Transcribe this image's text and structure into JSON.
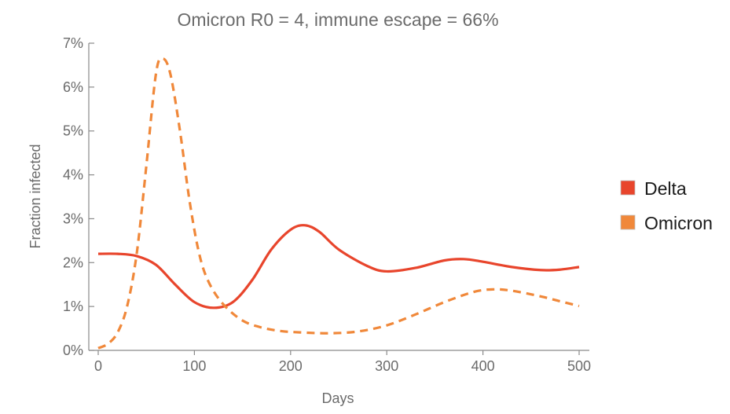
{
  "chart_data": {
    "type": "line",
    "title": "Omicron R0 = 4, immune escape = 66%",
    "xlabel": "Days",
    "ylabel": "Fraction infected",
    "xlim": [
      0,
      500
    ],
    "ylim": [
      0,
      7
    ],
    "x_ticks": [
      0,
      100,
      200,
      300,
      400,
      500
    ],
    "y_ticks": [
      0,
      1,
      2,
      3,
      4,
      5,
      6,
      7
    ],
    "y_tick_labels": [
      "0%",
      "1%",
      "2%",
      "3%",
      "4%",
      "5%",
      "6%",
      "7%"
    ],
    "grid": false,
    "legend_position": "right",
    "series": [
      {
        "name": "Delta",
        "color": "#e8452c",
        "line_style": "solid",
        "points": [
          [
            0,
            2.2
          ],
          [
            20,
            2.2
          ],
          [
            40,
            2.15
          ],
          [
            60,
            1.95
          ],
          [
            80,
            1.5
          ],
          [
            100,
            1.1
          ],
          [
            120,
            0.97
          ],
          [
            140,
            1.1
          ],
          [
            160,
            1.6
          ],
          [
            180,
            2.3
          ],
          [
            200,
            2.75
          ],
          [
            215,
            2.85
          ],
          [
            230,
            2.7
          ],
          [
            250,
            2.3
          ],
          [
            280,
            1.92
          ],
          [
            300,
            1.8
          ],
          [
            330,
            1.88
          ],
          [
            360,
            2.05
          ],
          [
            380,
            2.08
          ],
          [
            400,
            2.02
          ],
          [
            430,
            1.9
          ],
          [
            460,
            1.83
          ],
          [
            480,
            1.84
          ],
          [
            500,
            1.9
          ]
        ]
      },
      {
        "name": "Omicron",
        "color": "#f0883a",
        "line_style": "dashed",
        "points": [
          [
            0,
            0.05
          ],
          [
            10,
            0.15
          ],
          [
            20,
            0.4
          ],
          [
            30,
            1.0
          ],
          [
            40,
            2.2
          ],
          [
            50,
            4.2
          ],
          [
            60,
            6.3
          ],
          [
            67,
            6.65
          ],
          [
            75,
            6.3
          ],
          [
            85,
            5.0
          ],
          [
            95,
            3.4
          ],
          [
            105,
            2.2
          ],
          [
            115,
            1.55
          ],
          [
            130,
            1.05
          ],
          [
            150,
            0.68
          ],
          [
            170,
            0.52
          ],
          [
            190,
            0.44
          ],
          [
            210,
            0.41
          ],
          [
            240,
            0.39
          ],
          [
            270,
            0.43
          ],
          [
            300,
            0.57
          ],
          [
            330,
            0.82
          ],
          [
            360,
            1.1
          ],
          [
            390,
            1.33
          ],
          [
            410,
            1.39
          ],
          [
            430,
            1.36
          ],
          [
            460,
            1.23
          ],
          [
            480,
            1.12
          ],
          [
            500,
            1.01
          ]
        ]
      }
    ]
  }
}
